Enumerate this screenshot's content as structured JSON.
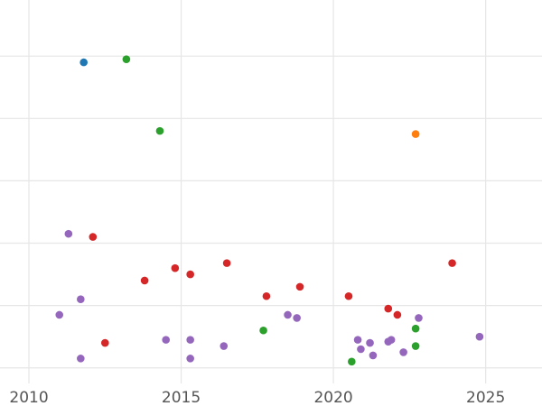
{
  "chart_data": {
    "type": "scatter",
    "title": "",
    "xlabel": "",
    "ylabel": "",
    "xlim": [
      2009.05,
      2026.85
    ],
    "ylim": [
      -0.25,
      5.9
    ],
    "grid": true,
    "legend": "none",
    "x_ticks": [
      2010,
      2015,
      2020,
      2025
    ],
    "x_tick_labels": [
      "2010",
      "2015",
      "2020",
      "2025"
    ],
    "y_gridlines": [
      0,
      1,
      2,
      3,
      4,
      5,
      6
    ],
    "colors": {
      "blue": "#1f77b4",
      "orange": "#ff7f0e",
      "green": "#2ca02c",
      "red": "#d62728",
      "purple": "#9467bd",
      "grid": "#e6e6e6",
      "tick_text": "#555555"
    },
    "points": [
      {
        "x": 2011.8,
        "y": 4.9,
        "color": "blue"
      },
      {
        "x": 2022.7,
        "y": 3.75,
        "color": "orange"
      },
      {
        "x": 2013.2,
        "y": 4.95,
        "color": "green"
      },
      {
        "x": 2014.3,
        "y": 3.8,
        "color": "green"
      },
      {
        "x": 2017.7,
        "y": 0.6,
        "color": "green"
      },
      {
        "x": 2020.6,
        "y": 0.1,
        "color": "green"
      },
      {
        "x": 2022.7,
        "y": 0.63,
        "color": "green"
      },
      {
        "x": 2022.7,
        "y": 0.35,
        "color": "green"
      },
      {
        "x": 2012.1,
        "y": 2.1,
        "color": "red"
      },
      {
        "x": 2013.8,
        "y": 1.4,
        "color": "red"
      },
      {
        "x": 2014.8,
        "y": 1.6,
        "color": "red"
      },
      {
        "x": 2015.3,
        "y": 1.5,
        "color": "red"
      },
      {
        "x": 2016.5,
        "y": 1.68,
        "color": "red"
      },
      {
        "x": 2017.8,
        "y": 1.15,
        "color": "red"
      },
      {
        "x": 2018.9,
        "y": 1.3,
        "color": "red"
      },
      {
        "x": 2020.5,
        "y": 1.15,
        "color": "red"
      },
      {
        "x": 2021.8,
        "y": 0.95,
        "color": "red"
      },
      {
        "x": 2022.1,
        "y": 0.85,
        "color": "red"
      },
      {
        "x": 2023.9,
        "y": 1.68,
        "color": "red"
      },
      {
        "x": 2012.5,
        "y": 0.4,
        "color": "red"
      },
      {
        "x": 2011.3,
        "y": 2.15,
        "color": "purple"
      },
      {
        "x": 2011.7,
        "y": 1.1,
        "color": "purple"
      },
      {
        "x": 2011.0,
        "y": 0.85,
        "color": "purple"
      },
      {
        "x": 2011.7,
        "y": 0.15,
        "color": "purple"
      },
      {
        "x": 2014.5,
        "y": 0.45,
        "color": "purple"
      },
      {
        "x": 2015.3,
        "y": 0.45,
        "color": "purple"
      },
      {
        "x": 2015.3,
        "y": 0.15,
        "color": "purple"
      },
      {
        "x": 2016.4,
        "y": 0.35,
        "color": "purple"
      },
      {
        "x": 2018.5,
        "y": 0.85,
        "color": "purple"
      },
      {
        "x": 2018.8,
        "y": 0.8,
        "color": "purple"
      },
      {
        "x": 2020.8,
        "y": 0.45,
        "color": "purple"
      },
      {
        "x": 2020.9,
        "y": 0.3,
        "color": "purple"
      },
      {
        "x": 2021.2,
        "y": 0.4,
        "color": "purple"
      },
      {
        "x": 2021.3,
        "y": 0.2,
        "color": "purple"
      },
      {
        "x": 2021.8,
        "y": 0.42,
        "color": "purple"
      },
      {
        "x": 2021.9,
        "y": 0.45,
        "color": "purple"
      },
      {
        "x": 2022.3,
        "y": 0.25,
        "color": "purple"
      },
      {
        "x": 2022.8,
        "y": 0.8,
        "color": "purple"
      },
      {
        "x": 2024.8,
        "y": 0.5,
        "color": "purple"
      }
    ]
  }
}
